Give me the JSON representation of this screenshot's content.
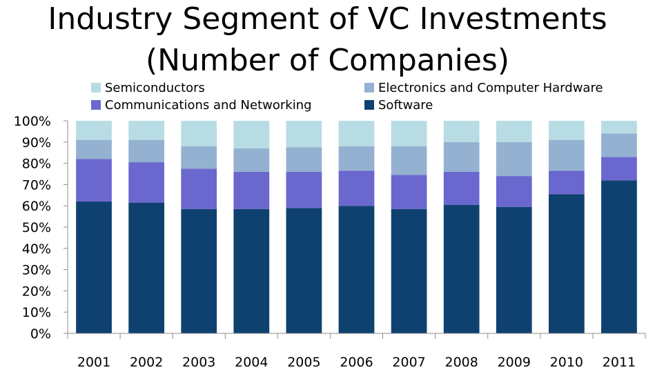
{
  "chart_data": {
    "type": "bar",
    "stacked": true,
    "percent": true,
    "title": "Industry Segment of VC Investments",
    "subtitle": "(Number of Companies)",
    "categories": [
      "2001",
      "2002",
      "2003",
      "2004",
      "2005",
      "2006",
      "2007",
      "2008",
      "2009",
      "2010",
      "2011"
    ],
    "ylim": [
      0,
      100
    ],
    "yticks": [
      "0%",
      "10%",
      "20%",
      "30%",
      "40%",
      "50%",
      "60%",
      "70%",
      "80%",
      "90%",
      "100%"
    ],
    "legend_position": "top",
    "grid": false,
    "series": [
      {
        "name": "Software",
        "color": "#0F4170",
        "values": [
          62,
          61.5,
          58.5,
          58.5,
          59,
          60,
          58.5,
          60.5,
          59.5,
          65.5,
          72
        ]
      },
      {
        "name": "Communications and Networking",
        "color": "#6A68CE",
        "values": [
          20,
          19,
          19,
          17.5,
          17,
          16.5,
          16,
          15.5,
          14.5,
          11,
          11
        ]
      },
      {
        "name": "Electronics and Computer Hardware",
        "color": "#94B1D1",
        "values": [
          9,
          10.5,
          10.5,
          11,
          11.5,
          11.5,
          13.5,
          14,
          16,
          14.5,
          11
        ]
      },
      {
        "name": "Semiconductors",
        "color": "#B8DCE4",
        "values": [
          9,
          9,
          12,
          13,
          12.5,
          12,
          12,
          10,
          10,
          9,
          6
        ]
      }
    ]
  }
}
